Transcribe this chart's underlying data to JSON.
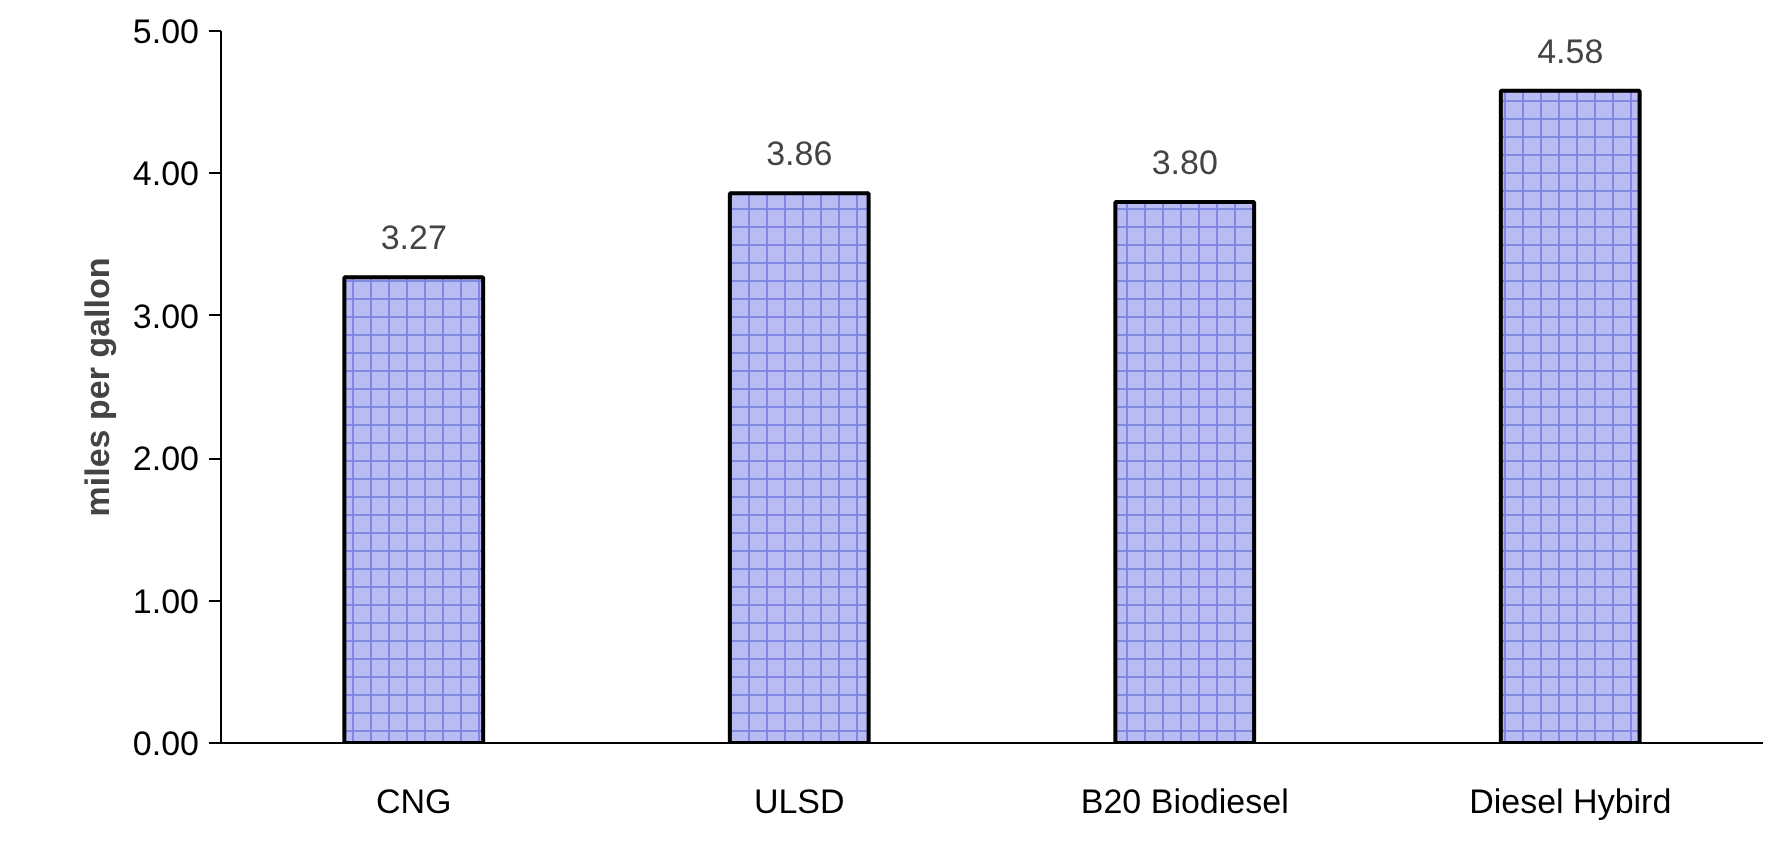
{
  "chart_data": {
    "type": "bar",
    "ylabel": "miles per gallon",
    "categories": [
      "CNG",
      "ULSD",
      "B20 Biodiesel",
      "Diesel Hybird"
    ],
    "values": [
      3.27,
      3.86,
      3.8,
      4.58
    ],
    "color": "#b8bcf2",
    "ylim": [
      0,
      5
    ],
    "yticks": [
      {
        "value": 0,
        "label": "0.00"
      },
      {
        "value": 1,
        "label": "1.00"
      },
      {
        "value": 2,
        "label": "2.00"
      },
      {
        "value": 3,
        "label": "3.00"
      },
      {
        "value": 4,
        "label": "4.00"
      },
      {
        "value": 5,
        "label": "5.00"
      }
    ],
    "value_labels": [
      "3.27",
      "3.86",
      "3.80",
      "4.58"
    ],
    "grid": false
  }
}
